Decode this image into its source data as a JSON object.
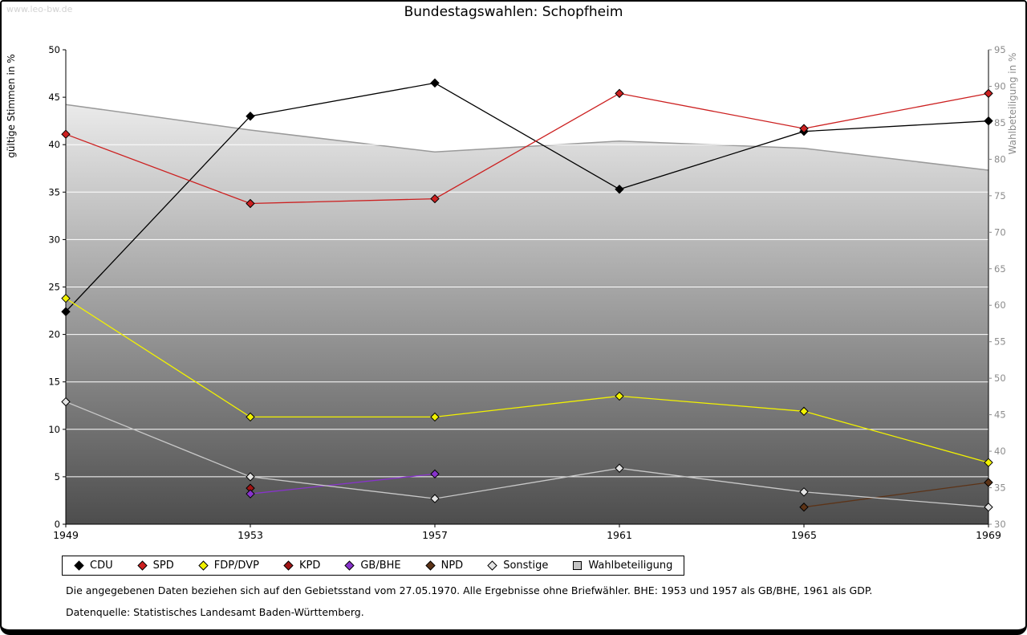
{
  "page": {
    "watermark": "www.leo-bw.de",
    "note1": "Die angegebenen Daten beziehen sich auf den Gebietsstand vom 27.05.1970. Alle Ergebnisse ohne Briefwähler. BHE: 1953 und 1957 als GB/BHE, 1961 als GDP.",
    "note2": "Datenquelle: Statistisches Landesamt Baden-Württemberg."
  },
  "chart_data": {
    "type": "line",
    "title": "Bundestagswahlen: Schopfheim",
    "x_categories": [
      "1949",
      "1953",
      "1957",
      "1961",
      "1965",
      "1969"
    ],
    "ylabel_left": "gültige Stimmen in %",
    "ylabel_right": "Wahlbeteiligung in %",
    "ylim_left": [
      0,
      50
    ],
    "ylim_right": [
      30,
      95
    ],
    "ytick_step": 5,
    "grid": true,
    "legend_position": "bottom",
    "axis_colors": {
      "left": "#000000",
      "right": "#8c8c8c"
    },
    "series": [
      {
        "name": "CDU",
        "axis": "left",
        "style": "line",
        "marker": "diamond",
        "color": "#000000",
        "values": [
          22.4,
          43.0,
          46.5,
          35.3,
          41.4,
          42.5
        ]
      },
      {
        "name": "SPD",
        "axis": "left",
        "style": "line",
        "marker": "diamond",
        "color": "#cc2020",
        "values": [
          41.1,
          33.8,
          34.3,
          45.4,
          41.7,
          45.4
        ]
      },
      {
        "name": "FDP/DVP",
        "axis": "left",
        "style": "line",
        "marker": "diamond",
        "color": "#f2f200",
        "values": [
          23.8,
          11.3,
          11.3,
          13.5,
          11.9,
          6.5
        ]
      },
      {
        "name": "KPD",
        "axis": "left",
        "style": "line",
        "marker": "diamond",
        "color": "#a01414",
        "values": [
          null,
          3.8,
          null,
          null,
          null,
          null
        ]
      },
      {
        "name": "GB/BHE",
        "axis": "left",
        "style": "line",
        "marker": "diamond",
        "color": "#8833cc",
        "values": [
          null,
          3.2,
          5.3,
          null,
          null,
          null
        ]
      },
      {
        "name": "NPD",
        "axis": "left",
        "style": "line",
        "marker": "diamond",
        "color": "#5c3317",
        "values": [
          null,
          null,
          null,
          null,
          1.8,
          4.4
        ]
      },
      {
        "name": "Sonstige",
        "axis": "left",
        "style": "line",
        "marker": "diamond",
        "color": "#c8c8c8",
        "marker_fill": "#e4e4e4",
        "values": [
          12.9,
          5.0,
          2.7,
          5.9,
          3.4,
          1.8
        ]
      },
      {
        "name": "Wahlbeteiligung",
        "axis": "right",
        "style": "area",
        "color": "#9a9a9a",
        "legend_fill": "#c4c4c4",
        "values": [
          87.5,
          84.0,
          81.0,
          82.5,
          81.5,
          78.5
        ]
      }
    ]
  }
}
